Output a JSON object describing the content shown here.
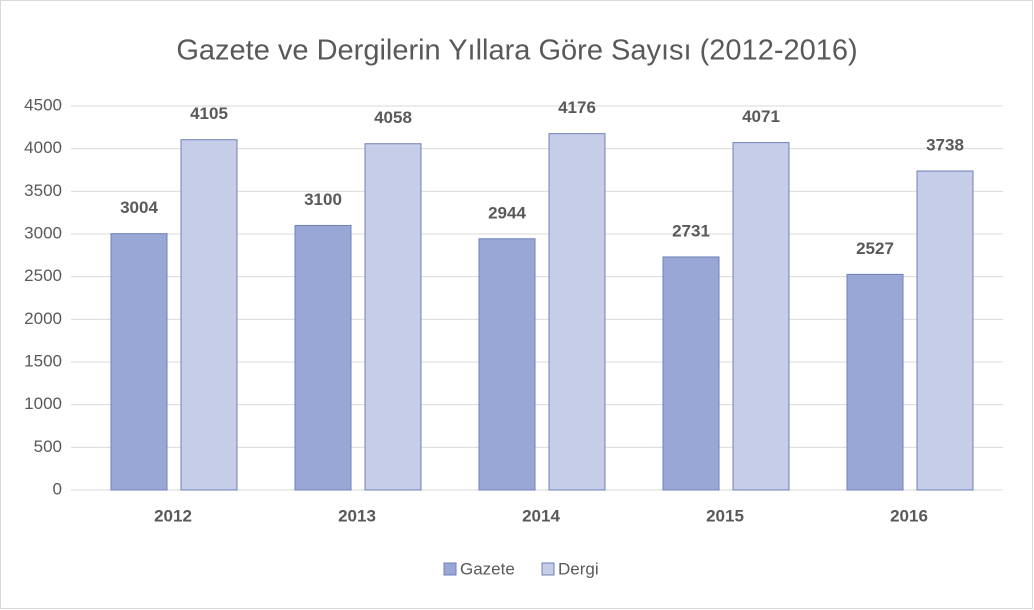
{
  "chart_data": {
    "type": "bar",
    "title": "Gazete ve Dergilerin  Yıllara  Göre Sayısı (2012-2016)",
    "categories": [
      "2012",
      "2013",
      "2014",
      "2015",
      "2016"
    ],
    "series": [
      {
        "name": "Gazete",
        "color": "#98a7d5",
        "values": [
          3004,
          3100,
          2944,
          2731,
          2527
        ]
      },
      {
        "name": "Dergi",
        "color": "#c5cde9",
        "values": [
          4105,
          4058,
          4176,
          4071,
          3738
        ]
      }
    ],
    "ylim": [
      0,
      4500
    ],
    "yticks": [
      0,
      500,
      1000,
      1500,
      2000,
      2500,
      3000,
      3500,
      4000,
      4500
    ],
    "grid": true,
    "legend": "bottom"
  }
}
